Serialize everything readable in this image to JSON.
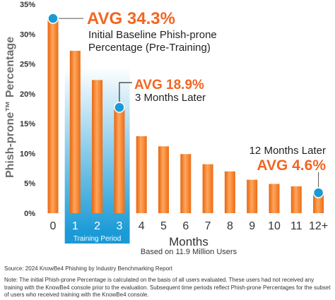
{
  "chart_data": {
    "type": "bar",
    "ylabel": "Phish-prone™ Percentage",
    "xlabel": "Months",
    "xlabel_sub": "Based on 11.9 Million Users",
    "categories": [
      "0",
      "1",
      "2",
      "3",
      "4",
      "5",
      "6",
      "7",
      "8",
      "9",
      "10",
      "11",
      "12+"
    ],
    "values": [
      32.5,
      27.2,
      22.3,
      17.6,
      12.9,
      11.2,
      9.9,
      8.2,
      7.0,
      5.6,
      4.9,
      4.5,
      3.3
    ],
    "ylim": [
      0,
      35
    ],
    "yticks": [
      "0%",
      "5%",
      "10%",
      "15%",
      "20%",
      "25%",
      "30%",
      "35%"
    ],
    "ytick_values": [
      0,
      5,
      10,
      15,
      20,
      25,
      30,
      35
    ],
    "grid": false,
    "training_period": {
      "label": "Training Period",
      "categories": [
        "1",
        "2",
        "3"
      ]
    },
    "annotations": [
      {
        "category": "0",
        "value": 32.5,
        "avg": "AVG 34.3%",
        "text_lines": [
          "Initial Baseline Phish-prone",
          "Percentage (Pre-Training)"
        ]
      },
      {
        "category": "3",
        "value": 17.6,
        "avg": "AVG 18.9%",
        "text_lines": [
          "3 Months Later"
        ]
      },
      {
        "category": "12+",
        "value": 3.3,
        "avg": "AVG 4.6%",
        "text_lines": [
          "12 Months Later"
        ]
      }
    ],
    "colors": {
      "bar": "#f47b20",
      "bar_light": "#ffa65c",
      "avg_text": "#f26522",
      "marker": "#1b9ad6",
      "training": "#1a9ad6",
      "axis_text": "#333333"
    }
  },
  "footer": {
    "source": "Source: 2024 KnowBe4 Phishing by Industry Benchmarking Report",
    "note": "Note: The initial Phish-prone Percentage is calculated on the basis of all users evaluated. These users had not received any training with the KnowBe4 console prior to the evaluation. Subsequent time periods reflect Phish-prone Percentages for the subset of users who received training with the KnowBe4 console."
  }
}
